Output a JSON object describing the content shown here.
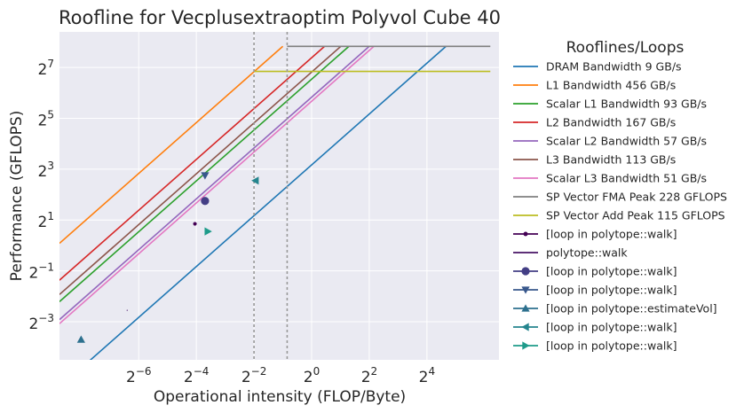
{
  "chart_data": {
    "type": "line",
    "title": "Roofline for Vecplusextraoptim Polyvol Cube 40",
    "xlabel": "Operational intensity (FLOP/Byte)",
    "ylabel": "Performance (GFLOPS)",
    "xscale": "log2",
    "yscale": "log2",
    "xlim_log2": [
      -8.75,
      6.5
    ],
    "ylim_log2": [
      -4.5,
      8.4
    ],
    "x_ticks": [
      {
        "base": "2",
        "exp": "−6",
        "log2": -6
      },
      {
        "base": "2",
        "exp": "−4",
        "log2": -4
      },
      {
        "base": "2",
        "exp": "−2",
        "log2": -2
      },
      {
        "base": "2",
        "exp": "0",
        "log2": 0
      },
      {
        "base": "2",
        "exp": "2",
        "log2": 2
      },
      {
        "base": "2",
        "exp": "4",
        "log2": 4
      }
    ],
    "y_ticks": [
      {
        "base": "2",
        "exp": "−3",
        "log2": -3
      },
      {
        "base": "2",
        "exp": "−1",
        "log2": -1
      },
      {
        "base": "2",
        "exp": "1",
        "log2": 1
      },
      {
        "base": "2",
        "exp": "3",
        "log2": 3
      },
      {
        "base": "2",
        "exp": "5",
        "log2": 5
      },
      {
        "base": "2",
        "exp": "7",
        "log2": 7
      }
    ],
    "grid": true,
    "legend_title": "Rooflines/Loops",
    "legend_position": "outside-right",
    "vertical_lines_log2": [
      -2.0,
      -0.85
    ],
    "rooflines": [
      {
        "name": "DRAM Bandwidth 9 GB/s",
        "bandwidth": 9,
        "peak": 228,
        "color": "#1f77b4"
      },
      {
        "name": "L1 Bandwidth 456 GB/s",
        "bandwidth": 456,
        "peak": 228,
        "color": "#ff7f0e"
      },
      {
        "name": "Scalar L1 Bandwidth 93 GB/s",
        "bandwidth": 93,
        "peak": 228,
        "color": "#2ca02c"
      },
      {
        "name": "L2 Bandwidth 167 GB/s",
        "bandwidth": 167,
        "peak": 228,
        "color": "#d62728"
      },
      {
        "name": "Scalar L2 Bandwidth 57 GB/s",
        "bandwidth": 57,
        "peak": 228,
        "color": "#9467bd"
      },
      {
        "name": "L3 Bandwidth 113 GB/s",
        "bandwidth": 113,
        "peak": 228,
        "color": "#8c564b"
      },
      {
        "name": "Scalar L3 Bandwidth 51 GB/s",
        "bandwidth": 51,
        "peak": 228,
        "color": "#e377c2"
      }
    ],
    "peaks": [
      {
        "name": "SP Vector FMA Peak 228 GFLOPS",
        "value": 228,
        "x_start_log2": -0.85,
        "color": "#7f7f7f"
      },
      {
        "name": "SP Vector Add Peak 115 GFLOPS",
        "value": 115,
        "x_start_log2": -2.0,
        "color": "#bcbd22"
      }
    ],
    "loops": [
      {
        "name": "[loop in polytope::walk]",
        "marker": "dot",
        "x_log2": -4.05,
        "y_log2": 0.85,
        "color": "#440154"
      },
      {
        "name": "polytope::walk",
        "marker": "none",
        "x_log2": -6.4,
        "y_log2": -2.55,
        "color": "#471365"
      },
      {
        "name": "[loop in polytope::walk]",
        "marker": "circle",
        "x_log2": -3.7,
        "y_log2": 1.75,
        "color": "#433e85"
      },
      {
        "name": "[loop in polytope::walk]",
        "marker": "triangle-down",
        "x_log2": -3.7,
        "y_log2": 2.75,
        "color": "#38588c"
      },
      {
        "name": "[loop in polytope::estimateVol]",
        "marker": "triangle-up",
        "x_log2": -8.0,
        "y_log2": -3.7,
        "color": "#2d708e"
      },
      {
        "name": "[loop in polytope::walk]",
        "marker": "triangle-left",
        "x_log2": -1.95,
        "y_log2": 2.55,
        "color": "#25858e"
      },
      {
        "name": "[loop in polytope::walk]",
        "marker": "triangle-right",
        "x_log2": -3.6,
        "y_log2": 0.55,
        "color": "#1e9b8a"
      }
    ]
  }
}
